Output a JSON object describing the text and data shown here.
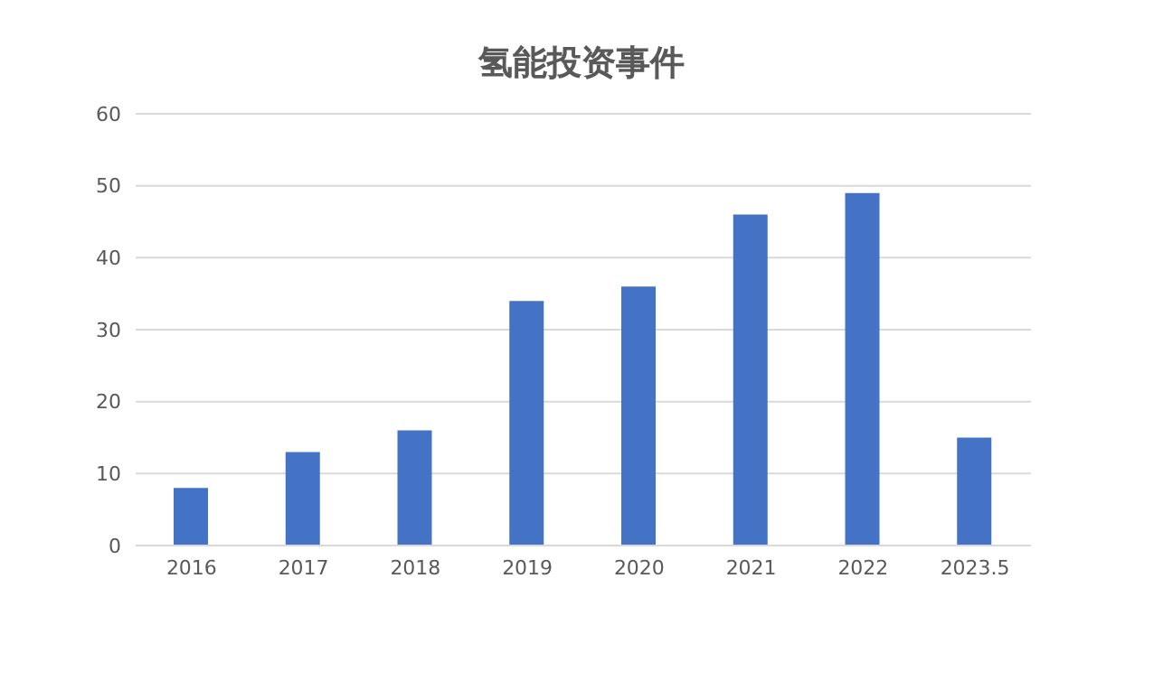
{
  "chart_data": {
    "type": "bar",
    "title": "氢能投资事件",
    "categories": [
      "2016",
      "2017",
      "2018",
      "2019",
      "2020",
      "2021",
      "2022",
      "2023.5"
    ],
    "values": [
      8,
      13,
      16,
      34,
      36,
      46,
      49,
      15
    ],
    "color": "#4472c4",
    "ylim": [
      0,
      60
    ],
    "yticks": [
      0,
      10,
      20,
      30,
      40,
      50,
      60
    ],
    "grid": "y"
  }
}
